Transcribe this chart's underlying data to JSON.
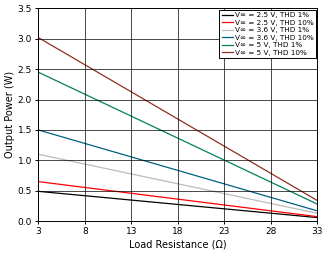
{
  "title": "",
  "xlabel": "Load Resistance (Ω)",
  "ylabel": "Output Power (W)",
  "xlim": [
    3,
    33
  ],
  "ylim": [
    0,
    3.5
  ],
  "xticks": [
    3,
    8,
    13,
    18,
    23,
    28,
    33
  ],
  "yticks": [
    0,
    0.5,
    1.0,
    1.5,
    2.0,
    2.5,
    3.0,
    3.5
  ],
  "series": [
    {
      "label": "V∞ = 2.5 V, THD 1%",
      "color": "#000000",
      "key": "2.5_1"
    },
    {
      "label": "V∞ = 2.5 V, THD 10%",
      "color": "#ff0000",
      "key": "2.5_10"
    },
    {
      "label": "V∞ = 3.6 V, THD 1%",
      "color": "#bbbbbb",
      "key": "3.6_1"
    },
    {
      "label": "V∞ = 3.6 V, THD 10%",
      "color": "#006080",
      "key": "3.6_10"
    },
    {
      "label": "V∞ = 5 V, THD 1%",
      "color": "#008060",
      "key": "5.0_1"
    },
    {
      "label": "V∞ = 5 V, THD 10%",
      "color": "#903020",
      "key": "5.0_10"
    }
  ],
  "line_data": {
    "2.5_1": {
      "r": [
        3,
        33
      ],
      "p": [
        0.49,
        0.058
      ]
    },
    "2.5_10": {
      "r": [
        3,
        33
      ],
      "p": [
        0.65,
        0.073
      ]
    },
    "3.6_1": {
      "r": [
        3,
        33
      ],
      "p": [
        1.1,
        0.128
      ]
    },
    "3.6_10": {
      "r": [
        3,
        33
      ],
      "p": [
        1.5,
        0.168
      ]
    },
    "5.0_1": {
      "r": [
        3,
        33
      ],
      "p": [
        2.45,
        0.279
      ]
    },
    "5.0_10": {
      "r": [
        3,
        33
      ],
      "p": [
        3.02,
        0.338
      ]
    }
  },
  "background_color": "#ffffff",
  "grid_color": "#000000",
  "legend_fontsize": 5.2,
  "axis_fontsize": 7,
  "tick_fontsize": 6.5
}
